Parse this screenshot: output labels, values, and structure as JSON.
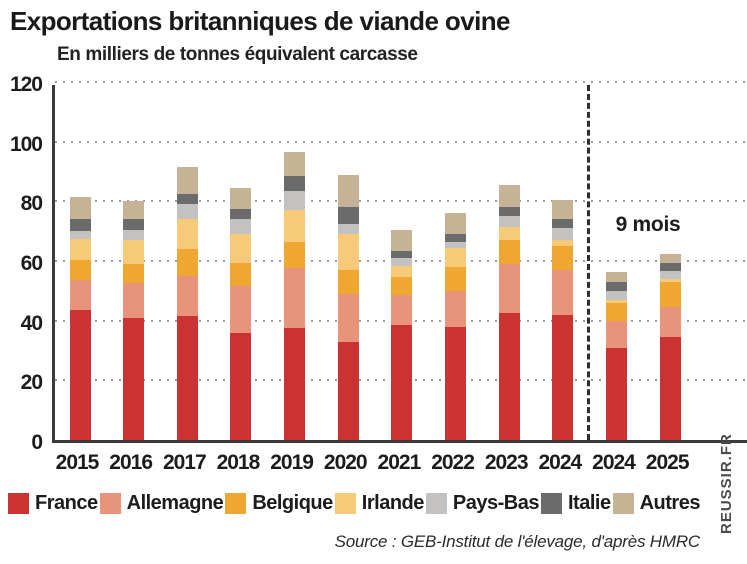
{
  "page": {
    "title": "Exportations britanniques de viande ovine",
    "source": "Source : GEB-Institut de l'élevage, d'après HMRC",
    "watermark": "REUSSIR.FR"
  },
  "chart_data": {
    "type": "bar",
    "stacked": true,
    "title": "Exportations britanniques de viande ovine",
    "subtitle": "En milliers de tonnes équivalent carcasse",
    "ylabel": "milliers de tonnes équivalent carcasse",
    "xlabel": "",
    "categories": [
      "2015",
      "2016",
      "2017",
      "2018",
      "2019",
      "2020",
      "2021",
      "2022",
      "2023",
      "2024",
      "2024",
      "2025"
    ],
    "series": [
      {
        "name": "France",
        "color": "#cb3333",
        "values": [
          43.5,
          41,
          41.5,
          36,
          37.5,
          33,
          38.5,
          38,
          42.5,
          42,
          31,
          34.5
        ]
      },
      {
        "name": "Allemagne",
        "color": "#e8947b",
        "values": [
          10,
          11.5,
          13.5,
          15.5,
          20,
          16,
          10,
          12,
          16.5,
          15,
          9,
          10
        ]
      },
      {
        "name": "Belgique",
        "color": "#f0a731",
        "values": [
          7,
          6.5,
          9,
          8,
          9,
          8,
          6,
          8,
          8,
          8,
          6,
          8.5
        ]
      },
      {
        "name": "Irlande",
        "color": "#f7ca79",
        "values": [
          7,
          8,
          10,
          9.5,
          10.5,
          12,
          4,
          6.5,
          4.5,
          2,
          1,
          1
        ]
      },
      {
        "name": "Pays-Bas",
        "color": "#c3c2c0",
        "values": [
          2.5,
          3.5,
          5,
          5,
          6.5,
          3.5,
          2.5,
          2,
          3.5,
          4,
          3,
          2.5
        ]
      },
      {
        "name": "Italie",
        "color": "#6b6b6b",
        "values": [
          4,
          3.5,
          3.5,
          3.5,
          5,
          5.5,
          2.5,
          2.5,
          3,
          3,
          3,
          3
        ]
      },
      {
        "name": "Autres",
        "color": "#c6b295",
        "values": [
          7.5,
          6,
          9,
          7,
          8,
          11,
          7,
          7,
          7.5,
          6.5,
          3.5,
          3
        ]
      }
    ],
    "totals": [
      81.5,
      80,
      91.5,
      84.5,
      96.5,
      89,
      70.5,
      76,
      85.5,
      80.5,
      56.5,
      62.5
    ],
    "ylim": [
      0,
      120
    ],
    "yticks": [
      0,
      20,
      40,
      60,
      80,
      100,
      120
    ],
    "grid": "dotted-horizontal",
    "legend_position": "bottom",
    "annotation": "9 mois",
    "separator_after_index": 9,
    "separator_style": "vertical-dashed"
  }
}
